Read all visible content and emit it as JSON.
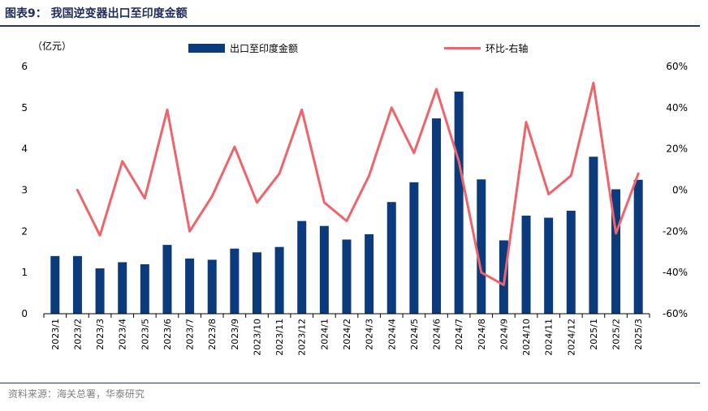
{
  "figure": {
    "title": "图表9：  我国逆变器出口至印度金额",
    "source": "资料来源：海关总署，华泰研究"
  },
  "chart_data": {
    "type": "bar+line",
    "categories": [
      "2023/1",
      "2023/2",
      "2023/3",
      "2023/4",
      "2023/5",
      "2023/6",
      "2023/7",
      "2023/8",
      "2023/9",
      "2023/10",
      "2023/11",
      "2023/12",
      "2024/1",
      "2024/2",
      "2024/3",
      "2024/4",
      "2024/5",
      "2024/6",
      "2024/7",
      "2024/8",
      "2024/9",
      "2024/10",
      "2024/11",
      "2024/12",
      "2025/1",
      "2025/2",
      "2025/3"
    ],
    "left_axis": {
      "unit_label": "（亿元）",
      "ylim": [
        0,
        6
      ],
      "ticks": [
        0,
        1,
        2,
        3,
        4,
        5,
        6
      ],
      "tick_labels": [
        "0",
        "1",
        "2",
        "3",
        "4",
        "5",
        "6"
      ]
    },
    "right_axis": {
      "ylim": [
        -60,
        60
      ],
      "ticks": [
        -60,
        -40,
        -20,
        0,
        20,
        40,
        60
      ],
      "tick_labels": [
        "-60%",
        "-40%",
        "-20%",
        "0%",
        "20%",
        "40%",
        "60%"
      ]
    },
    "series": [
      {
        "name": "出口至印度金额",
        "kind": "bar",
        "axis": "left",
        "color": "#0B3B7D",
        "values": [
          1.4,
          1.4,
          1.1,
          1.25,
          1.2,
          1.67,
          1.34,
          1.31,
          1.58,
          1.49,
          1.62,
          2.25,
          2.13,
          1.8,
          1.93,
          2.71,
          3.19,
          4.74,
          5.39,
          3.26,
          1.78,
          2.38,
          2.33,
          2.5,
          3.81,
          3.02,
          3.25
        ]
      },
      {
        "name": "环比-右轴",
        "kind": "line",
        "axis": "right",
        "color": "#F0636A",
        "values": [
          null,
          0,
          -22,
          14,
          -4,
          39,
          -20,
          -3,
          21,
          -6,
          8,
          39,
          -6,
          -15,
          7,
          40,
          18,
          49,
          14,
          -40,
          -46,
          33,
          -2,
          7,
          52,
          -21,
          8
        ]
      }
    ]
  }
}
